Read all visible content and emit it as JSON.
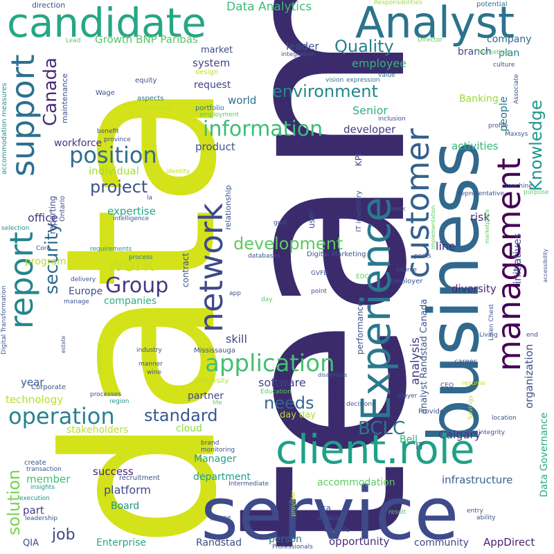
{
  "words": [
    {
      "text": "team",
      "color": "#3b2b6d"
    },
    {
      "text": "data",
      "color": "#d4e21a"
    },
    {
      "text": "service",
      "color": "#3e4a89"
    },
    {
      "text": "business",
      "color": "#31688e"
    },
    {
      "text": "candidate",
      "color": "#26a784"
    },
    {
      "text": "Analyst",
      "color": "#2c738e"
    },
    {
      "text": "client.role",
      "color": "#1fa187"
    },
    {
      "text": "Experience",
      "color": "#2a788e"
    },
    {
      "text": "customer",
      "color": "#35608d"
    },
    {
      "text": "management",
      "color": "#440154"
    },
    {
      "text": "network",
      "color": "#3e4989"
    },
    {
      "text": "support",
      "color": "#2d708e"
    },
    {
      "text": "report",
      "color": "#25858e"
    },
    {
      "text": "application",
      "color": "#44bf70"
    },
    {
      "text": "information",
      "color": "#3dbc74"
    },
    {
      "text": "position",
      "color": "#2f6c8e"
    },
    {
      "text": "operation",
      "color": "#26828e"
    },
    {
      "text": "Group",
      "color": "#443983"
    },
    {
      "text": "work",
      "color": "#c8e020"
    },
    {
      "text": "development",
      "color": "#5ec962"
    },
    {
      "text": "environment",
      "color": "#24868e"
    },
    {
      "text": "Canada",
      "color": "#472d7b"
    },
    {
      "text": "security",
      "color": "#30698e"
    },
    {
      "text": "project",
      "color": "#3b528b"
    },
    {
      "text": "standard",
      "color": "#38578c"
    },
    {
      "text": "needs",
      "color": "#31678e"
    },
    {
      "text": "BCLC",
      "color": "#2a778e"
    },
    {
      "text": "Quality",
      "color": "#27808e"
    },
    {
      "text": "solution",
      "color": "#7ad151"
    },
    {
      "text": "Knowledge",
      "color": "#1f978b"
    },
    {
      "text": "job",
      "color": "#414487"
    },
    {
      "text": "Data Analytics",
      "color": "#3dbc74"
    },
    {
      "text": "Growth BNP Paribas",
      "color": "#55c667"
    },
    {
      "text": "leader",
      "color": "#3b528b"
    },
    {
      "text": "employee",
      "color": "#35b779"
    },
    {
      "text": "system",
      "color": "#404688"
    },
    {
      "text": "request",
      "color": "#414287"
    },
    {
      "text": "world",
      "color": "#2e6e8e"
    },
    {
      "text": "Senior",
      "color": "#2ab07f"
    },
    {
      "text": "developer",
      "color": "#433d84"
    },
    {
      "text": "product",
      "color": "#3a538b"
    },
    {
      "text": "activities",
      "color": "#2fb47c"
    },
    {
      "text": "workforce",
      "color": "#46327e"
    },
    {
      "text": "individual",
      "color": "#a2da37"
    },
    {
      "text": "expertise",
      "color": "#21a685"
    },
    {
      "text": "office",
      "color": "#453581"
    },
    {
      "text": "analysis",
      "color": "#443a83"
    },
    {
      "text": "analyst Randstad Canada",
      "color": "#38598c"
    },
    {
      "text": "initiatives",
      "color": "#404688"
    },
    {
      "text": "risk",
      "color": "#46307e"
    },
    {
      "text": "line",
      "color": "#462f7e"
    },
    {
      "text": "diversity",
      "color": "#482475"
    },
    {
      "text": "organization",
      "color": "#3d4d8a"
    },
    {
      "text": "people",
      "color": "#29798e"
    },
    {
      "text": "company",
      "color": "#31678e"
    },
    {
      "text": "plan",
      "color": "#2a778e"
    },
    {
      "text": "branch",
      "color": "#3f4889"
    },
    {
      "text": "Banking",
      "color": "#9bd93c"
    },
    {
      "text": "market",
      "color": "#3e4c8a"
    },
    {
      "text": "companies",
      "color": "#2ab07f"
    },
    {
      "text": "Europe",
      "color": "#3d4e8a"
    },
    {
      "text": "program",
      "color": "#b5de2b"
    },
    {
      "text": "skill",
      "color": "#3f4788"
    },
    {
      "text": "technology",
      "color": "#b8de29"
    },
    {
      "text": "year",
      "color": "#38598c"
    },
    {
      "text": "software",
      "color": "#424086"
    },
    {
      "text": "partner",
      "color": "#3e4989"
    },
    {
      "text": "stakeholders",
      "color": "#bddf26"
    },
    {
      "text": "cloud",
      "color": "#90d743"
    },
    {
      "text": "Calgary",
      "color": "#443983"
    },
    {
      "text": "Bell",
      "color": "#2eb37c"
    },
    {
      "text": "IT",
      "color": "#3b528b"
    },
    {
      "text": "day day",
      "color": "#b5de2b"
    },
    {
      "text": "Data Governance",
      "color": "#25ab82"
    },
    {
      "text": "Manager",
      "color": "#20a386"
    },
    {
      "text": "department",
      "color": "#1e9c89"
    },
    {
      "text": "accommodation",
      "color": "#5ec962"
    },
    {
      "text": "infrastructure",
      "color": "#355f8d"
    },
    {
      "text": "success",
      "color": "#482071"
    },
    {
      "text": "platform",
      "color": "#3e4a89"
    },
    {
      "text": "member",
      "color": "#40bd72"
    },
    {
      "text": "part",
      "color": "#453882"
    },
    {
      "text": "Board",
      "color": "#21918c"
    },
    {
      "text": "Enterprise",
      "color": "#22a884"
    },
    {
      "text": "Randstad",
      "color": "#3e4a89"
    },
    {
      "text": "person",
      "color": "#2c738e"
    },
    {
      "text": "opportunity",
      "color": "#472c7a"
    },
    {
      "text": "community",
      "color": "#3f4889"
    },
    {
      "text": "AppDirect",
      "color": "#481f70"
    },
    {
      "text": "QIA",
      "color": "#3e4a89"
    },
    {
      "text": "reporting",
      "color": "#3e4989"
    },
    {
      "text": "Ontario",
      "color": "#3b528b"
    },
    {
      "text": "maintenance",
      "color": "#3b528b"
    },
    {
      "text": "relationship",
      "color": "#3b528b"
    },
    {
      "text": "contract",
      "color": "#3b528b"
    },
    {
      "text": "user",
      "color": "#3b528b"
    },
    {
      "text": "KPI",
      "color": "#3e4a89"
    },
    {
      "text": "IT inventory",
      "color": "#3b528b"
    },
    {
      "text": "performance",
      "color": "#3b528b"
    },
    {
      "text": "direction",
      "color": "#3b528b"
    },
    {
      "text": "Responsibilities",
      "color": "#9bd93c"
    },
    {
      "text": "potential",
      "color": "#2c738e"
    },
    {
      "text": "Lead",
      "color": "#5ec962"
    },
    {
      "text": "Director",
      "color": "#5ec962"
    },
    {
      "text": "Marketing",
      "color": "#5ec962"
    },
    {
      "text": "integration",
      "color": "#3b528b"
    },
    {
      "text": "design",
      "color": "#bddf26"
    },
    {
      "text": "culture",
      "color": "#3b528b"
    },
    {
      "text": "expression",
      "color": "#2c738e"
    },
    {
      "text": "vision",
      "color": "#2c738e"
    },
    {
      "text": "value",
      "color": "#2c738e"
    },
    {
      "text": "inclusion",
      "color": "#3b528b"
    },
    {
      "text": "Wage",
      "color": "#3b528b"
    },
    {
      "text": "equity",
      "color": "#3b528b"
    },
    {
      "text": "aspects",
      "color": "#2c738e"
    },
    {
      "text": "vendors",
      "color": "#bddf26"
    },
    {
      "text": "employment",
      "color": "#5ec962"
    },
    {
      "text": "benefit",
      "color": "#3b528b"
    },
    {
      "text": "province",
      "color": "#3b528b"
    },
    {
      "text": "profile",
      "color": "#3b528b"
    },
    {
      "text": "Maxsys",
      "color": "#3b528b"
    },
    {
      "text": "Associate",
      "color": "#3b528b"
    },
    {
      "text": "accommodation measures",
      "color": "#21918c"
    },
    {
      "text": "portfolio",
      "color": "#2c738e"
    },
    {
      "text": "identity",
      "color": "#bddf26"
    },
    {
      "text": "Representative",
      "color": "#3b528b"
    },
    {
      "text": "la",
      "color": "#3b528b"
    },
    {
      "text": "intelligence",
      "color": "#3b528b"
    },
    {
      "text": "selection",
      "color": "#21918c"
    },
    {
      "text": "Core",
      "color": "#3b528b"
    },
    {
      "text": "requirements",
      "color": "#21918c"
    },
    {
      "text": "process",
      "color": "#2c738e"
    },
    {
      "text": "delivery",
      "color": "#3b528b"
    },
    {
      "text": "Digital Marketing",
      "color": "#3b528b"
    },
    {
      "text": "databases",
      "color": "#3b528b"
    },
    {
      "text": "GVFB",
      "color": "#3b528b"
    },
    {
      "text": "goal",
      "color": "#3b528b"
    },
    {
      "text": "implementation",
      "color": "#5ec962"
    },
    {
      "text": "machine",
      "color": "#3b528b"
    },
    {
      "text": "purpose",
      "color": "#5ec962"
    },
    {
      "text": "marketplace",
      "color": "#5ec962"
    },
    {
      "text": "accessibility",
      "color": "#3b528b"
    },
    {
      "text": "week",
      "color": "#3b528b"
    },
    {
      "text": "perks",
      "color": "#3b528b"
    },
    {
      "text": "source",
      "color": "#3b528b"
    },
    {
      "text": "EDC",
      "color": "#5ec962"
    },
    {
      "text": "Employer",
      "color": "#3b528b"
    },
    {
      "text": "Digital Transformation",
      "color": "#3b528b"
    },
    {
      "text": "manage",
      "color": "#3b528b"
    },
    {
      "text": "app",
      "color": "#3b528b"
    },
    {
      "text": "day",
      "color": "#5ec962"
    },
    {
      "text": "point",
      "color": "#3b528b"
    },
    {
      "text": "Linen Chest",
      "color": "#3b528b"
    },
    {
      "text": "Living",
      "color": "#3b528b"
    },
    {
      "text": "end",
      "color": "#3b528b"
    },
    {
      "text": "estate",
      "color": "#3b528b"
    },
    {
      "text": "consumer",
      "color": "#bddf26"
    },
    {
      "text": "industry",
      "color": "#3b528b"
    },
    {
      "text": "manner",
      "color": "#3b528b"
    },
    {
      "text": "wine",
      "color": "#3b528b"
    },
    {
      "text": "Mississauga",
      "color": "#3b528b"
    },
    {
      "text": "University",
      "color": "#bddf26"
    },
    {
      "text": "disabilities",
      "color": "#3b528b"
    },
    {
      "text": "career",
      "color": "#3b528b"
    },
    {
      "text": "CEO",
      "color": "#3b528b"
    },
    {
      "text": "resume",
      "color": "#bddf26"
    },
    {
      "text": "Corporate",
      "color": "#3b528b"
    },
    {
      "text": "processes",
      "color": "#3b528b"
    },
    {
      "text": "region",
      "color": "#21918c"
    },
    {
      "text": "life",
      "color": "#5ec962"
    },
    {
      "text": "Education",
      "color": "#5ec962"
    },
    {
      "text": "decisions",
      "color": "#3b528b"
    },
    {
      "text": "player",
      "color": "#3b528b"
    },
    {
      "text": "Savings",
      "color": "#bddf26"
    },
    {
      "text": "Provide",
      "color": "#3b528b"
    },
    {
      "text": "location",
      "color": "#3b528b"
    },
    {
      "text": "integrity",
      "color": "#3b528b"
    },
    {
      "text": "brand",
      "color": "#3b528b"
    },
    {
      "text": "monitoring",
      "color": "#3b528b"
    },
    {
      "text": "create",
      "color": "#3b528b"
    },
    {
      "text": "transaction",
      "color": "#3b528b"
    },
    {
      "text": "recruitment",
      "color": "#3b528b"
    },
    {
      "text": "insights",
      "color": "#21918c"
    },
    {
      "text": "Intermediate",
      "color": "#3b528b"
    },
    {
      "text": "execution",
      "color": "#21918c"
    },
    {
      "text": "provider",
      "color": "#bddf26"
    },
    {
      "text": "ca",
      "color": "#3b528b"
    },
    {
      "text": "disability",
      "color": "#3b528b"
    },
    {
      "text": "result",
      "color": "#5ec962"
    },
    {
      "text": "entry",
      "color": "#3b528b"
    },
    {
      "text": "ability",
      "color": "#3b528b"
    },
    {
      "text": "leadership",
      "color": "#3b528b"
    },
    {
      "text": "please",
      "color": "#3b528b"
    },
    {
      "text": "Compile",
      "color": "#3b528b"
    },
    {
      "text": "Professionals",
      "color": "#3b528b"
    }
  ]
}
